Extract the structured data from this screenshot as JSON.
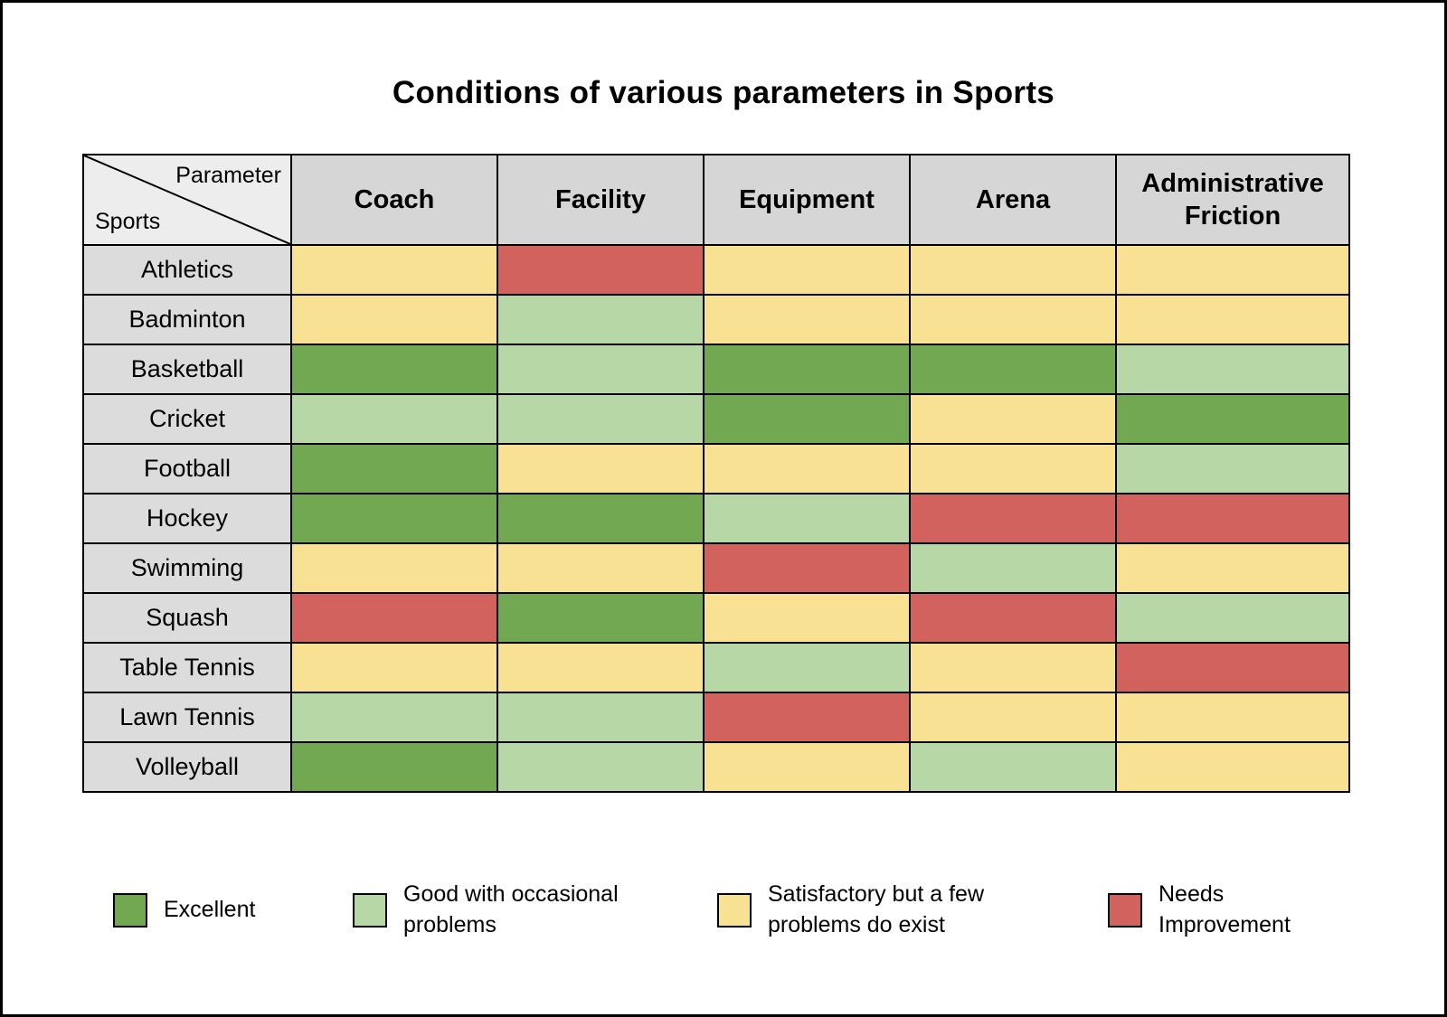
{
  "title": "Conditions of various parameters in Sports",
  "colors": {
    "excellent": "#72A851",
    "good": "#B7D7A6",
    "satisfactory": "#F8E193",
    "needs_improvement": "#D2625E",
    "header_bg": "#D6D6D6",
    "row_label_bg": "#DCDCDC",
    "corner_bg": "#EDEDED"
  },
  "corner": {
    "top_label": "Parameter",
    "bottom_label": "Sports"
  },
  "legend": [
    {
      "key": "excellent",
      "label": "Excellent"
    },
    {
      "key": "good",
      "label": "Good with occasional problems"
    },
    {
      "key": "satisfactory",
      "label": "Satisfactory but a few problems do exist"
    },
    {
      "key": "needs_improvement",
      "label": "Needs Improvement"
    }
  ],
  "chart_data": {
    "type": "heatmap",
    "title": "Conditions of various parameters in Sports",
    "x_categories": [
      "Coach",
      "Facility",
      "Equipment",
      "Arena",
      "Administrative Friction"
    ],
    "y_categories": [
      "Athletics",
      "Badminton",
      "Basketball",
      "Cricket",
      "Football",
      "Hockey",
      "Swimming",
      "Squash",
      "Table Tennis",
      "Lawn Tennis",
      "Volleyball"
    ],
    "value_scale": [
      "excellent",
      "good",
      "satisfactory",
      "needs_improvement"
    ],
    "legend_position": "bottom",
    "values": [
      [
        "satisfactory",
        "needs_improvement",
        "satisfactory",
        "satisfactory",
        "satisfactory"
      ],
      [
        "satisfactory",
        "good",
        "satisfactory",
        "satisfactory",
        "satisfactory"
      ],
      [
        "excellent",
        "good",
        "excellent",
        "excellent",
        "good"
      ],
      [
        "good",
        "good",
        "excellent",
        "satisfactory",
        "excellent"
      ],
      [
        "excellent",
        "satisfactory",
        "satisfactory",
        "satisfactory",
        "good"
      ],
      [
        "excellent",
        "excellent",
        "good",
        "needs_improvement",
        "needs_improvement"
      ],
      [
        "satisfactory",
        "satisfactory",
        "needs_improvement",
        "good",
        "satisfactory"
      ],
      [
        "needs_improvement",
        "excellent",
        "satisfactory",
        "needs_improvement",
        "good"
      ],
      [
        "satisfactory",
        "satisfactory",
        "good",
        "satisfactory",
        "needs_improvement"
      ],
      [
        "good",
        "good",
        "needs_improvement",
        "satisfactory",
        "satisfactory"
      ],
      [
        "excellent",
        "good",
        "satisfactory",
        "good",
        "satisfactory"
      ]
    ]
  }
}
